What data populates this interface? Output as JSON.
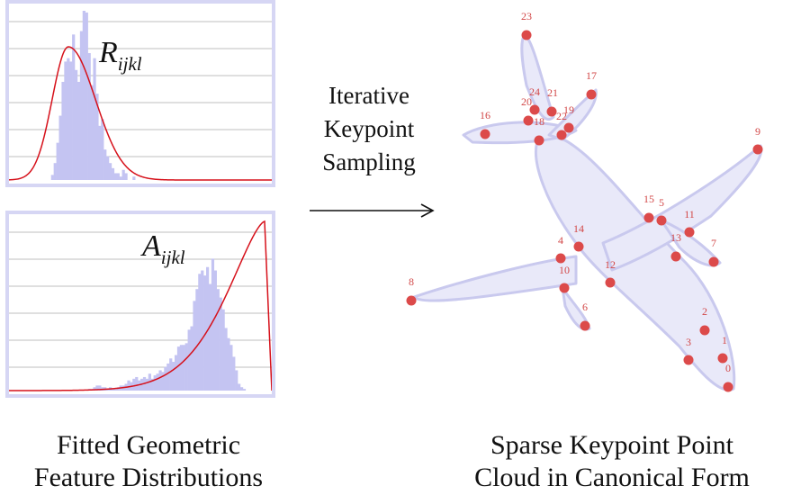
{
  "panels": {
    "top": {
      "symbol": "R",
      "subscript": "ijkl",
      "histogram": [
        0,
        0,
        0,
        0,
        0,
        0,
        0,
        0,
        0,
        0,
        0,
        0,
        0,
        0,
        0,
        0,
        3,
        10,
        22,
        38,
        58,
        70,
        72,
        70,
        86,
        65,
        58,
        88,
        100,
        99,
        75,
        56,
        72,
        51,
        32,
        36,
        18,
        14,
        10,
        7,
        4,
        4,
        2,
        6,
        4,
        0,
        0,
        2,
        0,
        0,
        0,
        0,
        0,
        0,
        0,
        0,
        0,
        0,
        0,
        0,
        0,
        0,
        0,
        0,
        0,
        0,
        0,
        0,
        0,
        0,
        0,
        0,
        0,
        0,
        0,
        0,
        0,
        0,
        0,
        0,
        0,
        0,
        0,
        0,
        0,
        0,
        0,
        0,
        0,
        0,
        0,
        0,
        0,
        0,
        0,
        0,
        0,
        0,
        0,
        0
      ],
      "curve_color": "#d6101a",
      "bar_color": "#c4c4f2"
    },
    "bottom": {
      "symbol": "A",
      "subscript": "ijkl",
      "histogram": [
        0,
        0,
        0,
        0,
        0,
        0,
        0,
        0,
        0,
        0,
        0,
        0,
        0,
        0,
        0,
        0,
        0,
        0,
        0,
        0,
        0,
        0,
        0,
        0,
        0,
        0,
        0,
        0,
        0,
        0,
        1,
        1,
        2,
        3,
        3,
        2,
        2,
        1,
        2,
        1,
        1,
        2,
        3,
        3,
        4,
        6,
        5,
        7,
        8,
        6,
        7,
        8,
        7,
        10,
        7,
        9,
        10,
        12,
        11,
        14,
        16,
        19,
        17,
        21,
        26,
        27,
        27,
        28,
        36,
        38,
        53,
        60,
        69,
        71,
        68,
        73,
        63,
        78,
        71,
        60,
        55,
        48,
        37,
        31,
        27,
        20,
        12,
        4,
        2,
        1,
        0,
        0,
        0,
        0,
        0,
        0,
        0,
        0,
        0,
        0
      ],
      "curve_color": "#d6101a",
      "bar_color": "#c4c4f2"
    }
  },
  "arrow_label": {
    "line1": "Iterative",
    "line2": "Keypoint",
    "line3": "Sampling"
  },
  "captions": {
    "left_line1": "Fitted Geometric",
    "left_line2": "Feature Distributions",
    "right_line1": "Sparse Keypoint Point",
    "right_line2": "Cloud in Canonical Form"
  },
  "keypoints": [
    {
      "id": "0",
      "label": "0"
    },
    {
      "id": "1",
      "label": "1"
    },
    {
      "id": "2",
      "label": "2"
    },
    {
      "id": "3",
      "label": "3"
    },
    {
      "id": "4",
      "label": "4"
    },
    {
      "id": "5",
      "label": "5"
    },
    {
      "id": "6",
      "label": "6"
    },
    {
      "id": "7",
      "label": "7"
    },
    {
      "id": "8",
      "label": "8"
    },
    {
      "id": "9",
      "label": "9"
    },
    {
      "id": "10",
      "label": "10"
    },
    {
      "id": "11",
      "label": "11"
    },
    {
      "id": "12",
      "label": "12"
    },
    {
      "id": "13",
      "label": "13"
    },
    {
      "id": "14",
      "label": "14"
    },
    {
      "id": "15",
      "label": "15"
    },
    {
      "id": "16",
      "label": "16"
    },
    {
      "id": "17",
      "label": "17"
    },
    {
      "id": "18",
      "label": "18"
    },
    {
      "id": "19",
      "label": "19"
    },
    {
      "id": "20",
      "label": "20"
    },
    {
      "id": "21",
      "label": "21"
    },
    {
      "id": "22",
      "label": "22"
    },
    {
      "id": "23",
      "label": "23"
    },
    {
      "id": "24",
      "label": "24"
    }
  ],
  "colors": {
    "point": "#dc4a4a",
    "point_label": "#d24848",
    "silhouette_fill": "#e9e9f9",
    "silhouette_stroke": "#c9c9ee",
    "grid": "#aaaaaa"
  }
}
